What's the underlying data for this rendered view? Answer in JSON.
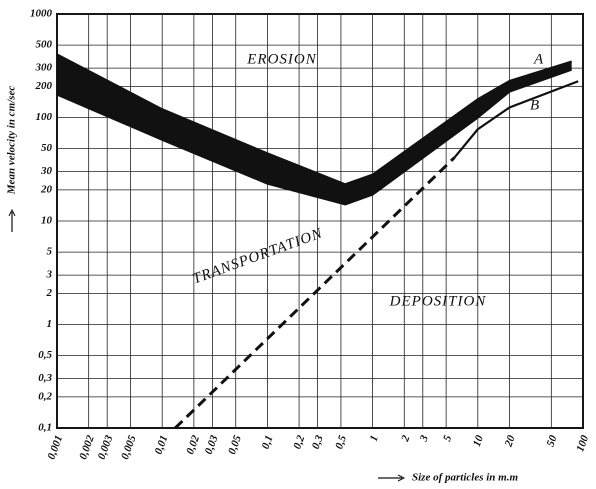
{
  "chart_data": {
    "type": "line",
    "xlabel": "Size of particles in m.m",
    "ylabel": "Mean velocity in cm/sec",
    "log_x": true,
    "log_y": true,
    "grid": true,
    "xlim": [
      0.001,
      100
    ],
    "ylim": [
      0.1,
      1000
    ],
    "xticks": [
      {
        "value": 0.001,
        "label": "0,001"
      },
      {
        "value": 0.002,
        "label": "0,002"
      },
      {
        "value": 0.003,
        "label": "0,003"
      },
      {
        "value": 0.005,
        "label": "0,005"
      },
      {
        "value": 0.01,
        "label": "0,01"
      },
      {
        "value": 0.02,
        "label": "0,02"
      },
      {
        "value": 0.03,
        "label": "0,03"
      },
      {
        "value": 0.05,
        "label": "0,05"
      },
      {
        "value": 0.1,
        "label": "0,1"
      },
      {
        "value": 0.2,
        "label": "0,2"
      },
      {
        "value": 0.3,
        "label": "0,3"
      },
      {
        "value": 0.5,
        "label": "0,5"
      },
      1,
      2,
      3,
      5,
      10,
      20,
      50,
      100
    ],
    "yticks": [
      {
        "value": 0.1,
        "label": "0,1"
      },
      {
        "value": 0.2,
        "label": "0,2"
      },
      {
        "value": 0.3,
        "label": "0,3"
      },
      {
        "value": 0.5,
        "label": "0,5"
      },
      1,
      2,
      3,
      5,
      10,
      20,
      30,
      50,
      100,
      200,
      300,
      500,
      1000
    ],
    "series": [
      {
        "name": "A",
        "color": "#111111",
        "x": [
          0.001,
          0.01,
          0.1,
          0.55,
          1,
          10,
          20,
          78
        ],
        "values": [
          406,
          120,
          45,
          22.6,
          28,
          150,
          225,
          347
        ]
      },
      {
        "color": "#111111",
        "x": [
          0.001,
          0.01,
          0.1,
          0.55,
          1,
          10,
          20,
          78
        ],
        "values": [
          167,
          61,
          23,
          14.5,
          18,
          100,
          178,
          290
        ]
      },
      {
        "name": "B",
        "color": "#111111",
        "x": [
          6,
          10,
          20,
          90
        ],
        "values": [
          41,
          77,
          125,
          224
        ]
      },
      {
        "color": "#111111",
        "dashed": true,
        "x": [
          0.0133,
          6
        ],
        "values": [
          0.1,
          41
        ]
      }
    ],
    "annotations": [
      "EROSION",
      "TRANSPORTATION",
      "DEPOSITION"
    ]
  }
}
